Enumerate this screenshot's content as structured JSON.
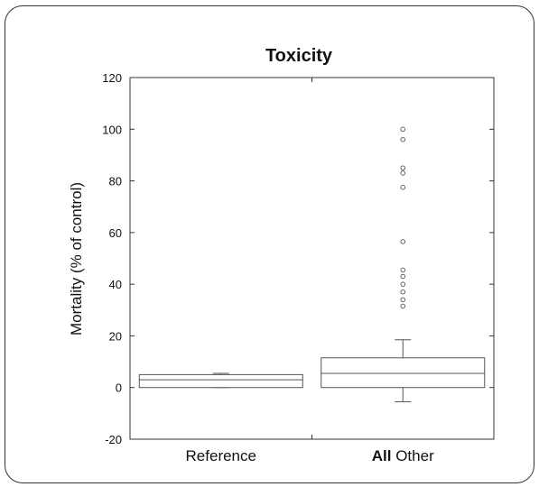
{
  "chart_data": {
    "type": "box",
    "title": "Toxicity",
    "xlabel": "",
    "ylabel": "Mortality (% of control)",
    "ylim": [
      -20,
      120
    ],
    "y_ticks": [
      -20,
      0,
      20,
      40,
      60,
      80,
      100,
      120
    ],
    "grid": false,
    "categories": [
      {
        "bold_part": "",
        "label": "Reference"
      },
      {
        "bold_part": "All",
        "label": " Other"
      }
    ],
    "boxes": [
      {
        "category": "Reference",
        "whisker_low": 0,
        "q1": 0,
        "median": 3,
        "q3": 5,
        "whisker_high": 5.5,
        "outliers": []
      },
      {
        "category": "All Other",
        "whisker_low": -5.5,
        "q1": 0,
        "median": 5.5,
        "q3": 11.5,
        "whisker_high": 18.5,
        "outliers": [
          31.5,
          34,
          37,
          40,
          43,
          45.5,
          56.5,
          77.5,
          83,
          85,
          96,
          100
        ]
      }
    ]
  },
  "colors": {
    "axis": "#333333",
    "box": "#555555",
    "outlier": "#555555",
    "text": "#111111",
    "frame": "#333333"
  }
}
